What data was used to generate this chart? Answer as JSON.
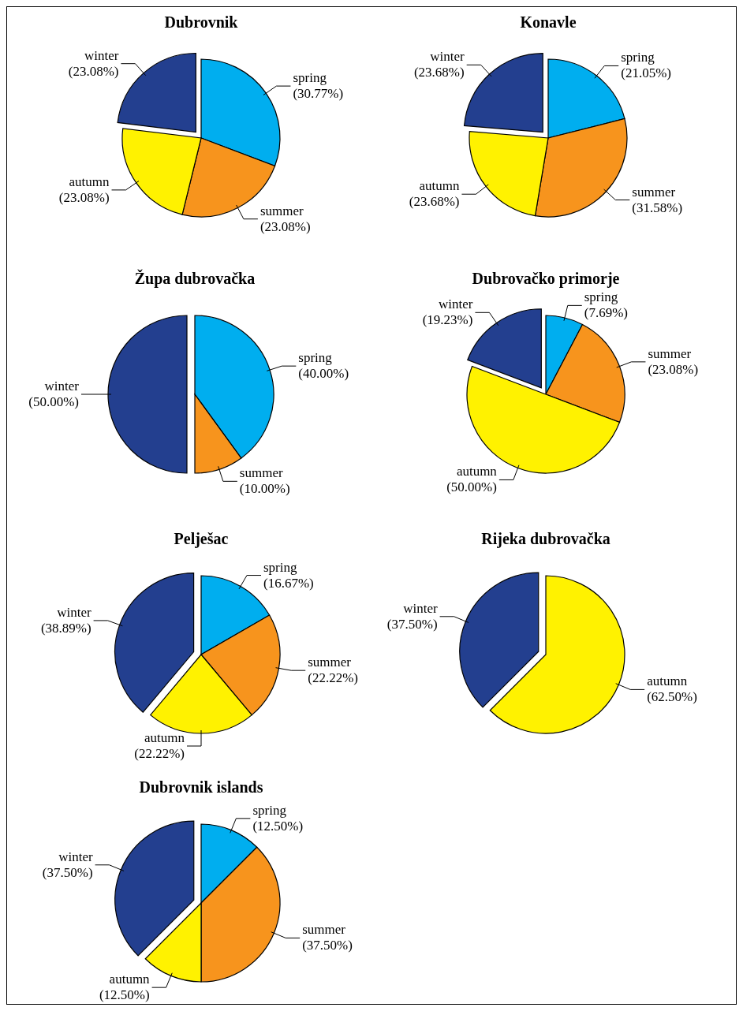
{
  "chart_data": [
    {
      "type": "pie",
      "title": "Dubrovnik",
      "categories": [
        "spring",
        "summer",
        "autumn",
        "winter"
      ],
      "values": [
        30.77,
        23.08,
        23.08,
        23.08
      ],
      "value_labels": [
        "(30.77%)",
        "(23.08%)",
        "(23.08%)",
        "(23.08%)"
      ],
      "colors": [
        "#00aeef",
        "#f7941d",
        "#fff200",
        "#233f8f"
      ]
    },
    {
      "type": "pie",
      "title": "Konavle",
      "categories": [
        "spring",
        "summer",
        "autumn",
        "winter"
      ],
      "values": [
        21.05,
        31.58,
        23.68,
        23.68
      ],
      "value_labels": [
        "(21.05%)",
        "(31.58%)",
        "(23.68%)",
        "(23.68%)"
      ],
      "colors": [
        "#00aeef",
        "#f7941d",
        "#fff200",
        "#233f8f"
      ]
    },
    {
      "type": "pie",
      "title": "Župa dubrovačka",
      "categories": [
        "spring",
        "summer",
        "winter"
      ],
      "values": [
        40.0,
        10.0,
        50.0
      ],
      "value_labels": [
        "(40.00%)",
        "(10.00%)",
        "(50.00%)"
      ],
      "colors": [
        "#00aeef",
        "#f7941d",
        "#233f8f"
      ]
    },
    {
      "type": "pie",
      "title": "Dubrovačko primorje",
      "categories": [
        "spring",
        "summer",
        "autumn",
        "winter"
      ],
      "values": [
        7.69,
        23.08,
        50.0,
        19.23
      ],
      "value_labels": [
        "(7.69%)",
        "(23.08%)",
        "(50.00%)",
        "(19.23%)"
      ],
      "colors": [
        "#00aeef",
        "#f7941d",
        "#fff200",
        "#233f8f"
      ]
    },
    {
      "type": "pie",
      "title": "Pelješac",
      "categories": [
        "spring",
        "summer",
        "autumn",
        "winter"
      ],
      "values": [
        16.67,
        22.22,
        22.22,
        38.89
      ],
      "value_labels": [
        "(16.67%)",
        "(22.22%)",
        "(22.22%)",
        "(38.89%)"
      ],
      "colors": [
        "#00aeef",
        "#f7941d",
        "#fff200",
        "#233f8f"
      ]
    },
    {
      "type": "pie",
      "title": "Rijeka dubrovačka",
      "categories": [
        "autumn",
        "winter"
      ],
      "values": [
        62.5,
        37.5
      ],
      "value_labels": [
        "(62.50%)",
        "(37.50%)"
      ],
      "colors": [
        "#fff200",
        "#233f8f"
      ]
    },
    {
      "type": "pie",
      "title": "Dubrovnik islands",
      "categories": [
        "spring",
        "summer",
        "autumn",
        "winter"
      ],
      "values": [
        12.5,
        37.5,
        12.5,
        37.5
      ],
      "value_labels": [
        "(12.50%)",
        "(37.50%)",
        "(12.50%)",
        "(37.50%)"
      ],
      "colors": [
        "#00aeef",
        "#f7941d",
        "#fff200",
        "#233f8f"
      ]
    }
  ]
}
